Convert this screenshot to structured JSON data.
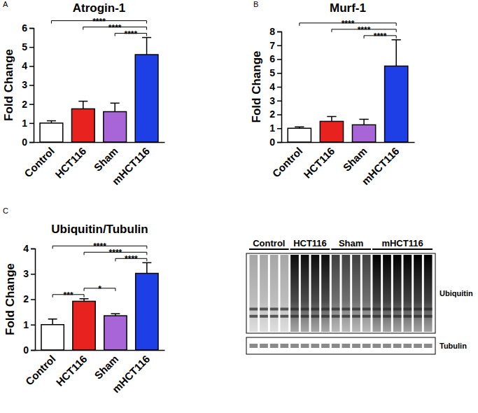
{
  "chart_data": [
    {
      "type": "bar",
      "panel_label": "A",
      "title": "Atrogin-1",
      "y_label": "Fold Change",
      "categories": [
        "Control",
        "HCT116",
        "Sham",
        "mHCT116"
      ],
      "values": [
        1.0,
        1.75,
        1.6,
        4.6
      ],
      "errors": [
        0.12,
        0.4,
        0.45,
        0.9
      ],
      "colors": [
        "#ffffff",
        "#e8231f",
        "#a865d8",
        "#1e3fe6"
      ],
      "ylim": [
        0,
        6
      ],
      "yticks": [
        0,
        1,
        2,
        3,
        4,
        5,
        6
      ],
      "significance": [
        {
          "from": "Sham",
          "to": "mHCT116",
          "label": "****"
        },
        {
          "from": "HCT116",
          "to": "mHCT116",
          "label": "****"
        },
        {
          "from": "Control",
          "to": "mHCT116",
          "label": "****"
        }
      ]
    },
    {
      "type": "bar",
      "panel_label": "B",
      "title": "Murf-1",
      "y_label": "Fold Change",
      "categories": [
        "Control",
        "HCT116",
        "Sham",
        "mHCT116"
      ],
      "values": [
        1.0,
        1.5,
        1.25,
        5.5
      ],
      "errors": [
        0.1,
        0.35,
        0.4,
        1.9
      ],
      "colors": [
        "#ffffff",
        "#e8231f",
        "#a865d8",
        "#1e3fe6"
      ],
      "ylim": [
        0,
        8
      ],
      "yticks": [
        0,
        1,
        2,
        3,
        4,
        5,
        6,
        7,
        8
      ],
      "significance": [
        {
          "from": "Sham",
          "to": "mHCT116",
          "label": "****"
        },
        {
          "from": "HCT116",
          "to": "mHCT116",
          "label": "****"
        },
        {
          "from": "Control",
          "to": "mHCT116",
          "label": "****"
        }
      ]
    },
    {
      "type": "bar",
      "panel_label": "C",
      "title": "Ubiquitin/Tubulin",
      "y_label": "Fold Change",
      "categories": [
        "Control",
        "HCT116",
        "Sham",
        "mHCT116"
      ],
      "values": [
        1.0,
        1.92,
        1.35,
        3.02
      ],
      "errors": [
        0.22,
        0.1,
        0.08,
        0.42
      ],
      "colors": [
        "#ffffff",
        "#e8231f",
        "#a865d8",
        "#1e3fe6"
      ],
      "ylim": [
        0,
        4
      ],
      "yticks": [
        0,
        1,
        2,
        3,
        4
      ],
      "significance": [
        {
          "from": "Control",
          "to": "HCT116",
          "label": "***"
        },
        {
          "from": "HCT116",
          "to": "Sham",
          "label": "*"
        },
        {
          "from": "Sham",
          "to": "mHCT116",
          "label": "****"
        },
        {
          "from": "HCT116",
          "to": "mHCT116",
          "label": "****"
        },
        {
          "from": "Control",
          "to": "mHCT116",
          "label": "****"
        }
      ]
    }
  ],
  "blot": {
    "groups": [
      {
        "label": "Control",
        "lanes": 4
      },
      {
        "label": "HCT116",
        "lanes": 4
      },
      {
        "label": "Sham",
        "lanes": 4
      },
      {
        "label": "mHCT116",
        "lanes": 6
      }
    ],
    "bands": [
      "Ubiquitin",
      "Tubulin"
    ]
  }
}
